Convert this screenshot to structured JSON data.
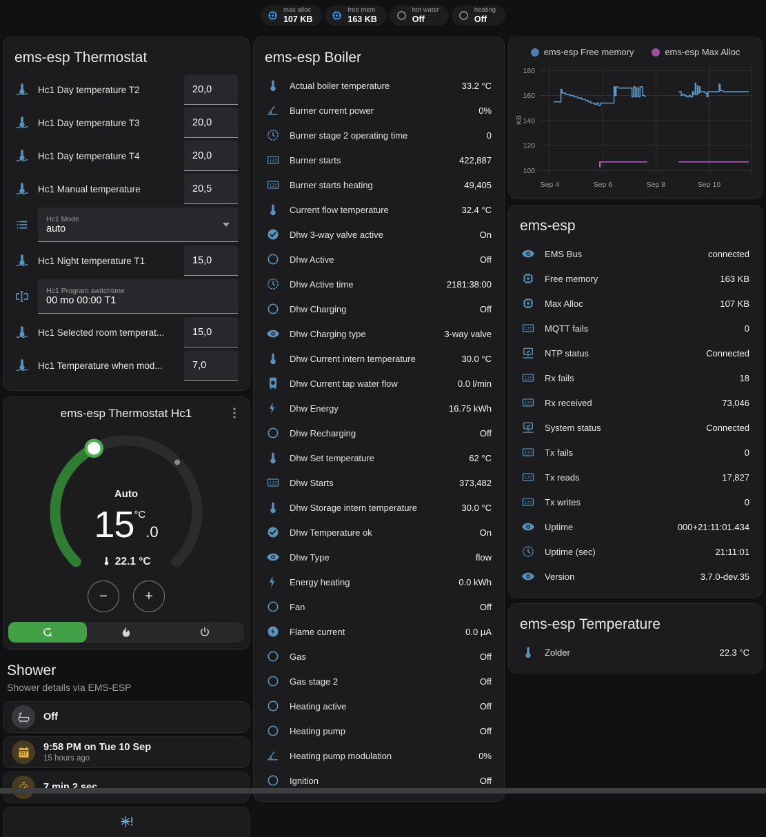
{
  "colors": {
    "accent_blue_icon": "#5a91bb",
    "badge_blue": "#39a1f4",
    "green_selected": "#43a047",
    "arc_green": "#2e7d32",
    "knob_ring_green": "#4caf50",
    "amber": "#e3b231",
    "snowflake_blue": "#6aa7d8",
    "card_bg": "#1c1c1e",
    "page_bg": "#111113"
  },
  "badges": [
    {
      "icon": "chip",
      "label": "max alloc",
      "value": "107 KB",
      "tint": "blue"
    },
    {
      "icon": "chip",
      "label": "free mem",
      "value": "163 KB",
      "tint": "blue"
    },
    {
      "icon": "circle",
      "label": "hot water",
      "value": "Off",
      "tint": "gray"
    },
    {
      "icon": "circle",
      "label": "heating",
      "value": "Off",
      "tint": "gray"
    }
  ],
  "thermostat_card": {
    "title": "ems-esp Thermostat",
    "rows": [
      {
        "type": "number",
        "icon": "thermometer-water",
        "label": "Hc1 Day temperature T2",
        "value": "20,0"
      },
      {
        "type": "number",
        "icon": "thermometer-water",
        "label": "Hc1 Day temperature T3",
        "value": "20,0"
      },
      {
        "type": "number",
        "icon": "thermometer-water",
        "label": "Hc1 Day temperature T4",
        "value": "20,0"
      },
      {
        "type": "number",
        "icon": "thermometer-water",
        "label": "Hc1 Manual temperature",
        "value": "20,5"
      },
      {
        "type": "select",
        "icon": "list",
        "label": "Hc1 Mode",
        "value": "auto"
      },
      {
        "type": "number",
        "icon": "thermometer-water",
        "label": "Hc1 Night temperature T1",
        "value": "15,0"
      },
      {
        "type": "text",
        "icon": "form-textbox",
        "label": "Hc1 Program switchtime",
        "value": "00 mo 00:00 T1"
      },
      {
        "type": "number",
        "icon": "thermometer-water",
        "label": "Hc1 Selected room temperat...",
        "value": "15,0"
      },
      {
        "type": "number",
        "icon": "thermometer-water",
        "label": "Hc1 Temperature when mod...",
        "value": "7,0"
      }
    ]
  },
  "dial_card": {
    "title": "ems-esp Thermostat Hc1",
    "menu_icon": "dots-vertical",
    "mode_label": "Auto",
    "target_whole": "15",
    "target_unit": "°C",
    "target_decimal": ".0",
    "current_temperature": "22.1 °C",
    "decrease_label": "−",
    "increase_label": "+",
    "modes": [
      {
        "name": "auto",
        "icon": "auto-mode",
        "selected": true
      },
      {
        "name": "heat",
        "icon": "fire",
        "selected": false
      },
      {
        "name": "off",
        "icon": "power",
        "selected": false
      }
    ]
  },
  "shower_section": {
    "title": "Shower",
    "subtitle": "Shower details via EMS-ESP",
    "items": [
      {
        "icon": "bathtub",
        "tint": "gray",
        "value": "Off",
        "secondary": ""
      },
      {
        "icon": "calendar",
        "tint": "amber",
        "value": "9:58 PM on Tue 10 Sep",
        "secondary": "15 hours ago"
      },
      {
        "icon": "timer",
        "tint": "amber",
        "value": "7 min 2 sec",
        "secondary": ""
      },
      {
        "icon": "snowflake-alert",
        "tint": "blue",
        "value": "",
        "secondary": ""
      }
    ]
  },
  "boiler_card": {
    "title": "ems-esp Boiler",
    "rows": [
      {
        "icon": "thermometer",
        "label": "Actual boiler temperature",
        "value": "33.2 °C"
      },
      {
        "icon": "angle",
        "label": "Burner current power",
        "value": "0%"
      },
      {
        "icon": "clock",
        "label": "Burner stage 2 operating time",
        "value": "0"
      },
      {
        "icon": "counter",
        "label": "Burner starts",
        "value": "422,887"
      },
      {
        "icon": "counter",
        "label": "Burner starts heating",
        "value": "49,405"
      },
      {
        "icon": "thermometer",
        "label": "Current flow temperature",
        "value": "32.4 °C"
      },
      {
        "icon": "check-circle",
        "label": "Dhw 3-way valve active",
        "value": "On"
      },
      {
        "icon": "circle",
        "label": "Dhw Active",
        "value": "Off"
      },
      {
        "icon": "clock",
        "label": "Dhw Active time",
        "value": "2181:38:00"
      },
      {
        "icon": "circle",
        "label": "Dhw Charging",
        "value": "Off"
      },
      {
        "icon": "eye",
        "label": "Dhw Charging type",
        "value": "3-way valve"
      },
      {
        "icon": "thermometer",
        "label": "Dhw Current intern temperature",
        "value": "30.0 °C"
      },
      {
        "icon": "water-boiler",
        "label": "Dhw Current tap water flow",
        "value": "0.0 l/min"
      },
      {
        "icon": "flash",
        "label": "Dhw Energy",
        "value": "16.75 kWh"
      },
      {
        "icon": "circle",
        "label": "Dhw Recharging",
        "value": "Off"
      },
      {
        "icon": "thermometer",
        "label": "Dhw Set temperature",
        "value": "62 °C"
      },
      {
        "icon": "counter",
        "label": "Dhw Starts",
        "value": "373,482"
      },
      {
        "icon": "thermometer",
        "label": "Dhw Storage intern temperature",
        "value": "30.0 °C"
      },
      {
        "icon": "check-circle",
        "label": "Dhw Temperature ok",
        "value": "On"
      },
      {
        "icon": "eye",
        "label": "Dhw Type",
        "value": "flow"
      },
      {
        "icon": "flash",
        "label": "Energy heating",
        "value": "0.0 kWh"
      },
      {
        "icon": "circle",
        "label": "Fan",
        "value": "Off"
      },
      {
        "icon": "flash-circle",
        "label": "Flame current",
        "value": "0.0 µA"
      },
      {
        "icon": "circle",
        "label": "Gas",
        "value": "Off"
      },
      {
        "icon": "circle",
        "label": "Gas stage 2",
        "value": "Off"
      },
      {
        "icon": "circle",
        "label": "Heating active",
        "value": "Off"
      },
      {
        "icon": "circle",
        "label": "Heating pump",
        "value": "Off"
      },
      {
        "icon": "angle",
        "label": "Heating pump modulation",
        "value": "0%"
      },
      {
        "icon": "circle",
        "label": "Ignition",
        "value": "Off"
      }
    ]
  },
  "ems_card": {
    "title": "ems-esp",
    "rows": [
      {
        "icon": "eye",
        "label": "EMS Bus",
        "value": "connected"
      },
      {
        "icon": "chip",
        "label": "Free memory",
        "value": "163 KB"
      },
      {
        "icon": "chip",
        "label": "Max Alloc",
        "value": "107 KB"
      },
      {
        "icon": "counter",
        "label": "MQTT fails",
        "value": "0"
      },
      {
        "icon": "network",
        "label": "NTP status",
        "value": "Connected"
      },
      {
        "icon": "counter",
        "label": "Rx fails",
        "value": "18"
      },
      {
        "icon": "counter",
        "label": "Rx received",
        "value": "73,046"
      },
      {
        "icon": "network",
        "label": "System status",
        "value": "Connected"
      },
      {
        "icon": "counter",
        "label": "Tx fails",
        "value": "0"
      },
      {
        "icon": "counter",
        "label": "Tx reads",
        "value": "17,827"
      },
      {
        "icon": "counter",
        "label": "Tx writes",
        "value": "0"
      },
      {
        "icon": "eye",
        "label": "Uptime",
        "value": "000+21:11:01.434"
      },
      {
        "icon": "clock",
        "label": "Uptime (sec)",
        "value": "21:11:01"
      },
      {
        "icon": "eye",
        "label": "Version",
        "value": "3.7.0-dev.35"
      }
    ]
  },
  "temperature_card": {
    "title": "ems-esp Temperature",
    "rows": [
      {
        "icon": "thermometer",
        "label": "Zolder",
        "value": "22.3 °C"
      }
    ]
  },
  "chart_data": {
    "type": "line",
    "title": "",
    "ylabel": "KB",
    "xlabel": "",
    "grid": true,
    "legend_position": "top",
    "xlim": [
      3.6,
      11.6
    ],
    "ylim": [
      97,
      184
    ],
    "yticks": [
      100,
      120,
      140,
      160,
      180
    ],
    "xticks": [
      {
        "v": 4,
        "label": "Sep 4"
      },
      {
        "v": 6,
        "label": "Sep 6"
      },
      {
        "v": 8,
        "label": "Sep 8"
      },
      {
        "v": 10,
        "label": "Sep 10"
      }
    ],
    "series": [
      {
        "name": "ems-esp Free memory",
        "color": "#5b97c8",
        "dot_color": "#4e7fa8",
        "segments": [
          [
            [
              4.15,
              155
            ],
            [
              4.42,
              155
            ],
            [
              4.42,
              165
            ],
            [
              4.46,
              165
            ],
            [
              4.46,
              162
            ],
            [
              4.6,
              162
            ],
            [
              4.6,
              161
            ],
            [
              4.75,
              161
            ],
            [
              4.75,
              160
            ],
            [
              4.9,
              160
            ],
            [
              4.9,
              159
            ],
            [
              5.05,
              159
            ],
            [
              5.05,
              158
            ],
            [
              5.2,
              158
            ],
            [
              5.2,
              157
            ],
            [
              5.35,
              157
            ],
            [
              5.35,
              156
            ],
            [
              5.45,
              156
            ],
            [
              5.45,
              155
            ],
            [
              5.55,
              155
            ],
            [
              5.55,
              154
            ],
            [
              5.7,
              154
            ],
            [
              5.7,
              153
            ],
            [
              5.78,
              153
            ],
            [
              5.78,
              154
            ],
            [
              5.84,
              154
            ],
            [
              5.84,
              152
            ],
            [
              5.9,
              152
            ],
            [
              5.9,
              154
            ],
            [
              6.42,
              154
            ],
            [
              6.42,
              167
            ],
            [
              6.46,
              167
            ],
            [
              6.46,
              160
            ],
            [
              6.5,
              160
            ],
            [
              6.5,
              167
            ],
            [
              6.56,
              167
            ],
            [
              6.6,
              166
            ],
            [
              7.1,
              166
            ],
            [
              7.1,
              159
            ],
            [
              7.16,
              159
            ],
            [
              7.16,
              167
            ],
            [
              7.22,
              167
            ],
            [
              7.22,
              159
            ],
            [
              7.28,
              159
            ],
            [
              7.28,
              166
            ],
            [
              7.34,
              166
            ],
            [
              7.34,
              159
            ],
            [
              7.4,
              159
            ],
            [
              7.4,
              167
            ],
            [
              7.5,
              167
            ],
            [
              7.5,
              160
            ],
            [
              7.56,
              160
            ],
            [
              7.62,
              159
            ]
          ],
          [
            [
              8.85,
              163
            ],
            [
              8.95,
              163
            ],
            [
              8.95,
              160
            ],
            [
              9.0,
              160
            ],
            [
              9.0,
              161
            ],
            [
              9.08,
              161
            ],
            [
              9.08,
              160
            ],
            [
              9.15,
              160
            ],
            [
              9.15,
              159
            ],
            [
              9.25,
              159
            ],
            [
              9.25,
              160
            ],
            [
              9.3,
              160
            ],
            [
              9.3,
              159
            ],
            [
              9.38,
              159
            ],
            [
              9.38,
              163
            ],
            [
              9.42,
              163
            ],
            [
              9.42,
              161
            ],
            [
              9.48,
              161
            ],
            [
              9.48,
              170
            ],
            [
              9.5,
              170
            ],
            [
              9.5,
              161
            ],
            [
              9.56,
              161
            ],
            [
              9.56,
              168
            ],
            [
              9.58,
              168
            ],
            [
              9.58,
              162
            ],
            [
              9.64,
              162
            ],
            [
              9.64,
              167
            ],
            [
              9.66,
              167
            ],
            [
              9.66,
              163
            ],
            [
              9.72,
              163
            ],
            [
              9.85,
              163
            ],
            [
              9.85,
              162
            ],
            [
              9.92,
              162
            ],
            [
              9.92,
              159
            ],
            [
              9.96,
              159
            ],
            [
              9.96,
              163
            ],
            [
              10.05,
              163
            ],
            [
              10.38,
              163
            ],
            [
              10.38,
              169
            ],
            [
              10.42,
              169
            ],
            [
              10.42,
              164
            ],
            [
              10.5,
              164
            ],
            [
              10.55,
              163
            ],
            [
              11.5,
              163
            ]
          ]
        ]
      },
      {
        "name": "ems-esp Max Alloc",
        "color": "#a85fae",
        "dot_color": "#9b4d9e",
        "segments": [
          [
            [
              5.86,
              107
            ],
            [
              5.88,
              107
            ],
            [
              5.88,
              103
            ],
            [
              5.9,
              103
            ],
            [
              5.9,
              107
            ],
            [
              7.67,
              107
            ]
          ],
          [
            [
              8.85,
              107
            ],
            [
              11.5,
              107
            ]
          ]
        ]
      }
    ]
  }
}
